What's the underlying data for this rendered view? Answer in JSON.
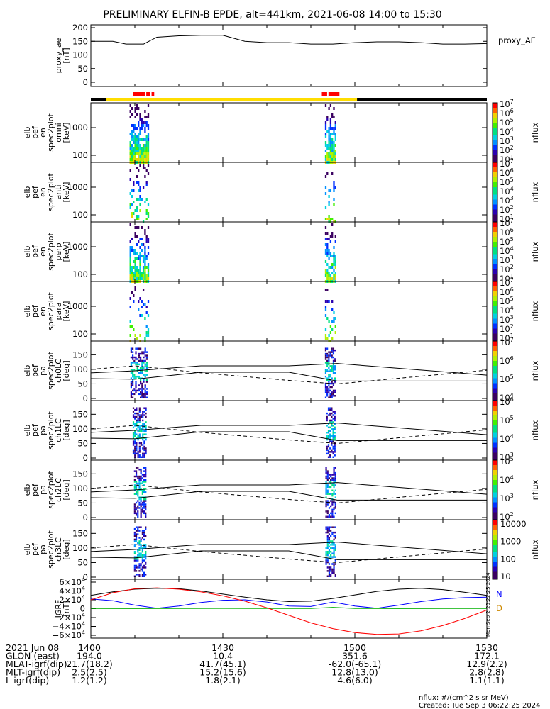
{
  "title": "PRELIMINARY ELFIN-B EPDE, alt=441km, 2021-06-08 14:00 to 15:30",
  "colors": {
    "science_zone_red": "#ff0000",
    "sunlit_yellow": "#ffdd00",
    "eclipse_black": "#000000",
    "bx": "#000000",
    "by": "#0000ff",
    "bz": "#00b000",
    "total": "#ff0000"
  },
  "chart_data": [
    {
      "type": "line",
      "id": "proxy_ae",
      "ylabel_lines": [
        "proxy_ae",
        "[nT]"
      ],
      "legend": "proxy_AE",
      "ylim": [
        0,
        200
      ],
      "yticks": [
        "0",
        "50",
        "100",
        "150",
        "200"
      ],
      "x_minutes": [
        0,
        5,
        8,
        12,
        15,
        20,
        25,
        30,
        35,
        40,
        45,
        50,
        55,
        60,
        65,
        70,
        75,
        80,
        85,
        90
      ],
      "y": [
        150,
        150,
        140,
        140,
        165,
        170,
        172,
        172,
        150,
        145,
        145,
        140,
        140,
        145,
        148,
        148,
        145,
        140,
        140,
        142
      ]
    },
    {
      "type": "heatmap",
      "id": "omni",
      "ylabel_lines": [
        "elb",
        "pef",
        "en",
        "spec2plot",
        "omni",
        "[keV]"
      ],
      "yscale": "log",
      "yticks": [
        "100",
        "1000"
      ],
      "zlabel": "nflux",
      "zticks": [
        "10",
        "10",
        "10",
        "10",
        "10",
        "10",
        "10"
      ],
      "zexp": [
        "1",
        "2",
        "3",
        "4",
        "5",
        "6",
        "7"
      ],
      "bursts_minutes": [
        [
          8.8,
          13.2
        ],
        [
          53.2,
          55.5
        ]
      ]
    },
    {
      "type": "heatmap",
      "id": "anti",
      "ylabel_lines": [
        "elb",
        "pef",
        "en",
        "spec2plot",
        "anti",
        "[keV]"
      ],
      "yscale": "log",
      "yticks": [
        "100",
        "1000"
      ],
      "zlabel": "nflux",
      "zticks": [
        "10",
        "10",
        "10",
        "10",
        "10",
        "10",
        "10"
      ],
      "zexp": [
        "1",
        "2",
        "3",
        "4",
        "5",
        "6",
        "7"
      ],
      "bursts_minutes": [
        [
          8.8,
          13.2
        ],
        [
          53.2,
          55.5
        ]
      ]
    },
    {
      "type": "heatmap",
      "id": "perp",
      "ylabel_lines": [
        "elb",
        "pef",
        "en",
        "spec2plot",
        "perp",
        "[keV]"
      ],
      "yscale": "log",
      "yticks": [
        "100",
        "1000"
      ],
      "zlabel": "nflux",
      "zticks": [
        "10",
        "10",
        "10",
        "10",
        "10",
        "10",
        "10"
      ],
      "zexp": [
        "1",
        "2",
        "3",
        "4",
        "5",
        "6",
        "7"
      ],
      "bursts_minutes": [
        [
          8.8,
          13.2
        ],
        [
          53.2,
          55.5
        ]
      ]
    },
    {
      "type": "heatmap",
      "id": "para",
      "ylabel_lines": [
        "elb",
        "pef",
        "en",
        "spec2plot",
        "para",
        "[keV]"
      ],
      "yscale": "log",
      "yticks": [
        "100",
        "1000"
      ],
      "zlabel": "nflux",
      "zticks": [
        "10",
        "10",
        "10",
        "10",
        "10",
        "10",
        "10"
      ],
      "zexp": [
        "1",
        "2",
        "3",
        "4",
        "5",
        "6",
        "7"
      ],
      "bursts_minutes": [
        [
          8.8,
          13.2
        ],
        [
          53.2,
          55.5
        ]
      ]
    },
    {
      "type": "heatmap",
      "id": "ch0LC",
      "ylabel_lines": [
        "elb",
        "pef",
        "pa",
        "spec2plot",
        "ch0LC",
        "[deg]"
      ],
      "ylim": [
        0,
        180
      ],
      "yticks": [
        "0",
        "50",
        "100",
        "150"
      ],
      "zlabel": "nflux",
      "zticks": [
        "10",
        "10",
        "10",
        "10"
      ],
      "zexp": [
        "4",
        "5",
        "6",
        "7"
      ],
      "bursts_minutes": [
        [
          9,
          12.8
        ],
        [
          53.2,
          55.5
        ]
      ]
    },
    {
      "type": "heatmap",
      "id": "ch1LC",
      "ylabel_lines": [
        "elb",
        "pef",
        "pa",
        "spec2plot",
        "ch1LC",
        "[deg]"
      ],
      "ylim": [
        0,
        180
      ],
      "yticks": [
        "0",
        "50",
        "100",
        "150"
      ],
      "zlabel": "nflux",
      "zticks": [
        "10",
        "10",
        "10",
        "10"
      ],
      "zexp": [
        "3",
        "4",
        "5",
        "6"
      ],
      "bursts_minutes": [
        [
          9.5,
          12.5
        ],
        [
          53.5,
          55.5
        ]
      ]
    },
    {
      "type": "heatmap",
      "id": "ch2LC",
      "ylabel_lines": [
        "elb",
        "pef",
        "pa",
        "spec2plot",
        "ch2LC",
        "[deg]"
      ],
      "ylim": [
        0,
        180
      ],
      "yticks": [
        "0",
        "50",
        "100",
        "150"
      ],
      "zlabel": "nflux",
      "zticks": [
        "10",
        "10",
        "10",
        "10"
      ],
      "zexp": [
        "2",
        "3",
        "4",
        "5"
      ],
      "bursts_minutes": [
        [
          9.8,
          12.3
        ],
        [
          53.3,
          55.5
        ]
      ]
    },
    {
      "type": "heatmap",
      "id": "ch3LC",
      "ylabel_lines": [
        "elb",
        "pef",
        "pa",
        "spec2plot",
        "ch3LC",
        "[deg]"
      ],
      "ylim": [
        0,
        180
      ],
      "yticks": [
        "0",
        "50",
        "100",
        "150"
      ],
      "zlabel": "nflux",
      "zticks_plain": [
        "10",
        "100",
        "1000",
        "10000"
      ],
      "bursts_minutes": [
        [
          9.8,
          12.3
        ],
        [
          53.3,
          55.5
        ]
      ]
    },
    {
      "type": "line",
      "id": "igrf",
      "ylabel_lines": [
        "IGRF",
        "[nT]"
      ],
      "ylim": [
        -60000,
        60000
      ],
      "yticks": [
        "0",
        "2×10",
        "4×10",
        "6×10",
        "−2×10",
        "−4×10",
        "−6×10"
      ],
      "ytick_exp": "4",
      "legend_right": [
        "N",
        "D"
      ],
      "series": [
        {
          "name": "",
          "color": "#000000",
          "x_minutes": [
            0,
            5,
            10,
            15,
            20,
            25,
            30,
            35,
            40,
            45,
            50,
            55,
            60,
            65,
            70,
            75,
            80,
            85,
            90
          ],
          "y": [
            30000,
            38000,
            44000,
            46000,
            45000,
            40000,
            33000,
            26000,
            20000,
            16000,
            17000,
            23000,
            31000,
            39000,
            44000,
            46000,
            43000,
            37000,
            30000
          ]
        },
        {
          "name": "",
          "color": "#0000ff",
          "x_minutes": [
            0,
            5,
            10,
            15,
            20,
            25,
            30,
            35,
            40,
            45,
            50,
            55,
            60,
            65,
            70,
            75,
            80,
            85,
            90
          ],
          "y": [
            22000,
            18000,
            8000,
            1000,
            6000,
            14000,
            19000,
            20000,
            15000,
            6000,
            5000,
            15000,
            6000,
            1000,
            8000,
            16000,
            22000,
            25000,
            26000
          ]
        },
        {
          "name": "",
          "color": "#00b000",
          "x_minutes": [
            0,
            10,
            20,
            30,
            40,
            50,
            55,
            60,
            70,
            80,
            90
          ],
          "y": [
            500,
            300,
            400,
            600,
            500,
            400,
            3000,
            500,
            300,
            400,
            500
          ]
        },
        {
          "name": "",
          "color": "#ff0000",
          "x_minutes": [
            0,
            5,
            10,
            15,
            20,
            25,
            30,
            35,
            40,
            45,
            50,
            55,
            60,
            65,
            70,
            75,
            80,
            85,
            90
          ],
          "y": [
            20000,
            36000,
            45000,
            47000,
            44000,
            38000,
            29000,
            17000,
            2000,
            -15000,
            -32000,
            -45000,
            -54000,
            -58000,
            -57000,
            -50000,
            -38000,
            -22000,
            -3000
          ]
        }
      ]
    }
  ],
  "table": {
    "rows": [
      {
        "label": "2021 Jun 08",
        "values": [
          "1400",
          "1430",
          "1500",
          "1530"
        ]
      },
      {
        "label": "GLON (east)",
        "values": [
          "194.0",
          "10.4",
          "351.6",
          "172.1"
        ]
      },
      {
        "label": "MLAT-igrf(dip)",
        "values": [
          "21.7(18.2)",
          "41.7(45.1)",
          "-62.0(-65.1)",
          "12.9(2.2)"
        ]
      },
      {
        "label": "MLT-igrf(dip)",
        "values": [
          "2.5(2.5)",
          "15.2(15.6)",
          "12.8(13.0)",
          "2.8(2.8)"
        ]
      },
      {
        "label": "L-igrf(dip)",
        "values": [
          "1.2(1.2)",
          "1.8(2.1)",
          "4.6(6.0)",
          "1.1(1.1)"
        ]
      }
    ]
  },
  "footer": {
    "units": "nflux: #/(cm^2 s sr MeV)",
    "created": "Created: Tue Sep  3 06:22:25 2024",
    "side_stamp": "Mon Sep  2 23:22:25 2024"
  }
}
